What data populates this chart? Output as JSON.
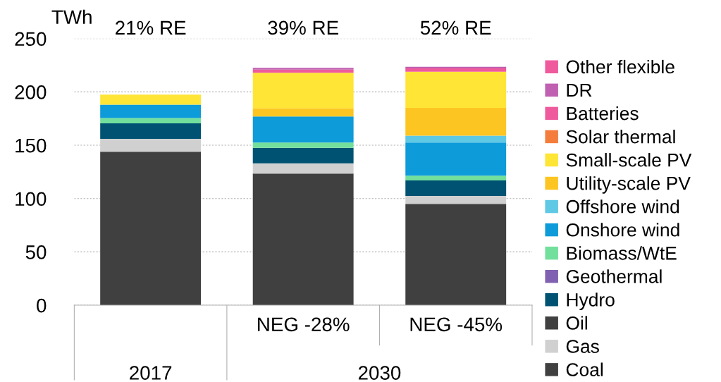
{
  "chart_data": {
    "type": "bar",
    "stacked": true,
    "ylabel": "TWh",
    "categories": [
      null,
      "NEG -28%",
      "NEG -45%"
    ],
    "series": [
      {
        "name": "Coal",
        "color": "#404040",
        "values": [
          144,
          123.5,
          95
        ]
      },
      {
        "name": "Gas",
        "color": "#d0d0d0",
        "values": [
          12,
          9.5,
          7.5
        ]
      },
      {
        "name": "Oil",
        "color": "#404040",
        "values": [
          0,
          0,
          0
        ]
      },
      {
        "name": "Hydro",
        "color": "#005272",
        "values": [
          14.5,
          14.5,
          14.5
        ]
      },
      {
        "name": "Geothermal",
        "color": "#8060b0",
        "values": [
          0,
          0,
          0
        ]
      },
      {
        "name": "Biomass/WtE",
        "color": "#72e09c",
        "values": [
          5,
          5,
          4.5
        ]
      },
      {
        "name": "Onshore wind",
        "color": "#0e9bd9",
        "values": [
          12.5,
          24.5,
          31
        ]
      },
      {
        "name": "Offshore wind",
        "color": "#5ec8e5",
        "values": [
          0,
          0,
          6.5
        ]
      },
      {
        "name": "Utility-scale PV",
        "color": "#fdc521",
        "values": [
          0,
          7.5,
          26
        ]
      },
      {
        "name": "Small-scale PV",
        "color": "#ffe535",
        "values": [
          9.5,
          33.5,
          34
        ]
      },
      {
        "name": "Solar thermal",
        "color": "#f47d3c",
        "values": [
          0,
          0,
          0
        ]
      },
      {
        "name": "Batteries",
        "color": "#ef5a9c",
        "values": [
          0,
          3,
          3
        ]
      },
      {
        "name": "DR",
        "color": "#c060b0",
        "values": [
          null,
          1.5,
          1.5
        ]
      },
      {
        "name": "Other flexible",
        "color": "#ef5a9c",
        "values": [
          0,
          0,
          0
        ]
      }
    ],
    "ylim": [
      0,
      250
    ],
    "yticks": [
      0,
      50,
      100,
      150,
      200,
      250
    ],
    "grid": "y",
    "legend": "right",
    "annotations": [
      "21% RE",
      "39% RE",
      "52% RE",
      "2017",
      "2030"
    ]
  }
}
